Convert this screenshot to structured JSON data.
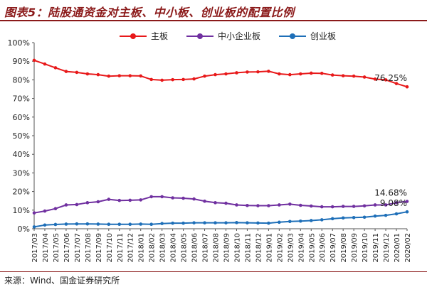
{
  "title": "图表5：陆股通资金对主板、中小板、创业板的配置比例",
  "source": "来源：Wind、国金证券研究所",
  "chart_data": {
    "type": "line",
    "title": "图表5：陆股通资金对主板、中小板、创业板的配置比例",
    "xlabel": "",
    "ylabel": "",
    "ylim": [
      0,
      100
    ],
    "y_ticks": [
      "0%",
      "10%",
      "20%",
      "30%",
      "40%",
      "50%",
      "60%",
      "70%",
      "80%",
      "90%",
      "100%"
    ],
    "grid": false,
    "legend_position": "top",
    "categories": [
      "2017/03",
      "2017/04",
      "2017/05",
      "2017/06",
      "2017/07",
      "2017/08",
      "2017/09",
      "2017/10",
      "2017/11",
      "2017/12",
      "2018/01",
      "2018/02",
      "2018/03",
      "2018/04",
      "2018/05",
      "2018/06",
      "2018/07",
      "2018/08",
      "2018/09",
      "2018/10",
      "2018/11",
      "2018/12",
      "2019/01",
      "2019/02",
      "2019/03",
      "2019/04",
      "2019/05",
      "2019/06",
      "2019/07",
      "2019/08",
      "2019/09",
      "2019/10",
      "2019/11",
      "2019/12",
      "2020/01",
      "2020/02"
    ],
    "series": [
      {
        "name": "主板",
        "color": "#e8191a",
        "values": [
          90.5,
          88.5,
          86.5,
          84.5,
          84.0,
          83.2,
          82.8,
          82.0,
          82.2,
          82.2,
          82.1,
          80.2,
          79.8,
          80.1,
          80.2,
          80.5,
          82.0,
          82.8,
          83.2,
          83.8,
          84.2,
          84.3,
          84.6,
          83.2,
          82.8,
          83.2,
          83.6,
          83.5,
          82.6,
          82.2,
          82.0,
          81.5,
          80.4,
          80.0,
          78.0,
          76.25
        ],
        "end_label": "76.25%"
      },
      {
        "name": "中小企业板",
        "color": "#7030a0",
        "values": [
          8.5,
          9.5,
          10.8,
          12.8,
          13.0,
          14.0,
          14.5,
          15.8,
          15.2,
          15.3,
          15.5,
          17.2,
          17.2,
          16.6,
          16.4,
          16.0,
          14.8,
          14.0,
          13.7,
          12.8,
          12.5,
          12.4,
          12.4,
          12.8,
          13.2,
          12.6,
          12.2,
          11.8,
          11.8,
          12.0,
          12.0,
          12.3,
          12.8,
          12.8,
          14.0,
          14.68
        ],
        "end_label": "14.68%"
      },
      {
        "name": "创业板",
        "color": "#1e6fb8",
        "values": [
          1.0,
          2.0,
          2.3,
          2.5,
          2.6,
          2.6,
          2.5,
          2.4,
          2.4,
          2.4,
          2.5,
          2.4,
          2.8,
          3.0,
          3.0,
          3.2,
          3.2,
          3.2,
          3.2,
          3.3,
          3.2,
          3.1,
          3.0,
          3.5,
          3.9,
          4.1,
          4.4,
          4.8,
          5.4,
          5.8,
          6.0,
          6.2,
          6.8,
          7.2,
          8.0,
          9.08
        ],
        "end_label": "9.08%"
      }
    ]
  }
}
